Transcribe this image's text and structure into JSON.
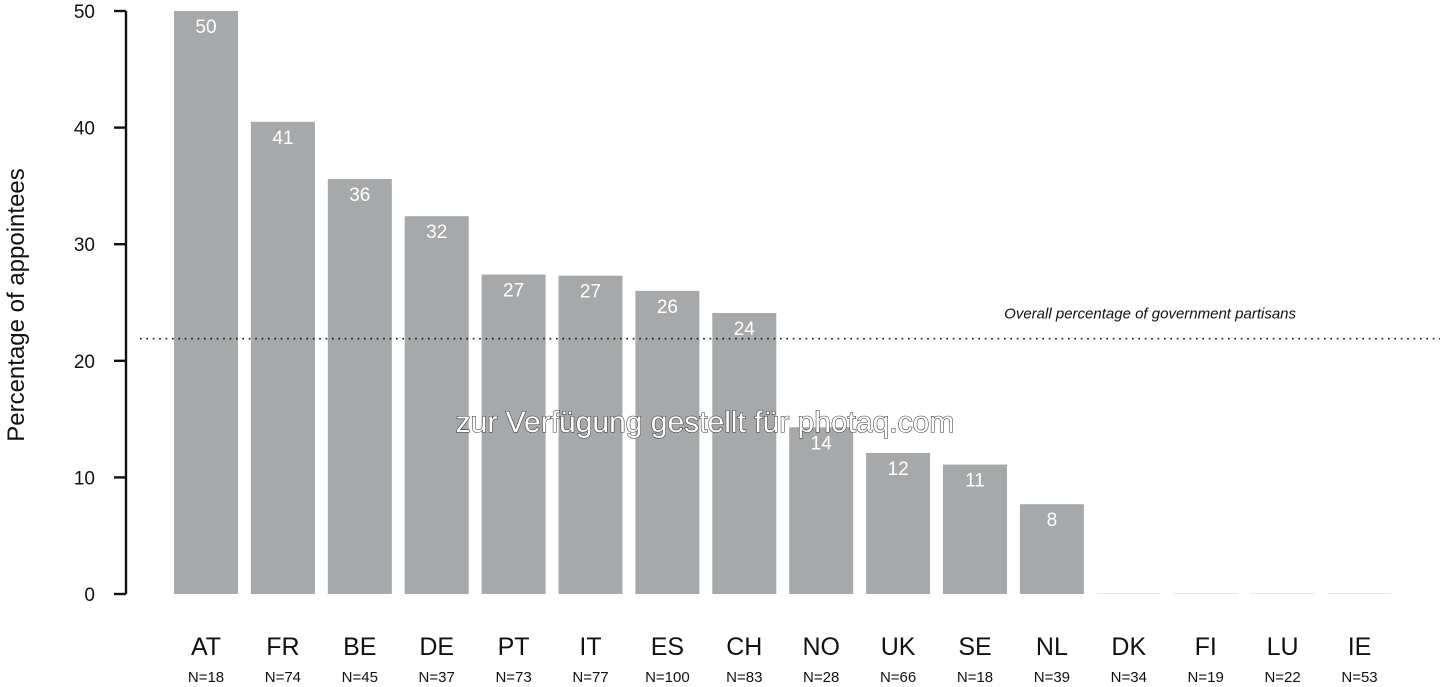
{
  "chart_data": {
    "type": "bar",
    "ylabel": "Percentage of appointees",
    "ylim": [
      0,
      50
    ],
    "yticks": [
      "0",
      "10",
      "20",
      "30",
      "40",
      "50"
    ],
    "categories": [
      "AT",
      "FR",
      "BE",
      "DE",
      "PT",
      "IT",
      "ES",
      "CH",
      "NO",
      "UK",
      "SE",
      "NL",
      "DK",
      "FI",
      "LU",
      "IE"
    ],
    "n_labels": [
      "N=18",
      "N=74",
      "N=45",
      "N=37",
      "N=73",
      "N=77",
      "N=100",
      "N=83",
      "N=28",
      "N=66",
      "N=18",
      "N=39",
      "N=34",
      "N=19",
      "N=22",
      "N=53"
    ],
    "values": [
      50,
      40.5,
      35.6,
      32.4,
      27.4,
      27.3,
      26.0,
      24.1,
      14.3,
      12.1,
      11.1,
      7.7,
      0,
      0,
      0,
      0
    ],
    "value_labels": [
      "50",
      "41",
      "36",
      "32",
      "27",
      "27",
      "26",
      "24",
      "14",
      "12",
      "11",
      "8",
      "",
      "",
      "",
      ""
    ],
    "reference_line": {
      "value": 21.9,
      "label": "Overall percentage of government partisans",
      "style": "dotted"
    },
    "colors": {
      "bar": "#a6a8a9",
      "zero_bar": "#e6e7e8",
      "axis": "#111111"
    },
    "grid": false,
    "legend": "none"
  },
  "watermark": "zur Verfügung gestellt für photaq.com"
}
